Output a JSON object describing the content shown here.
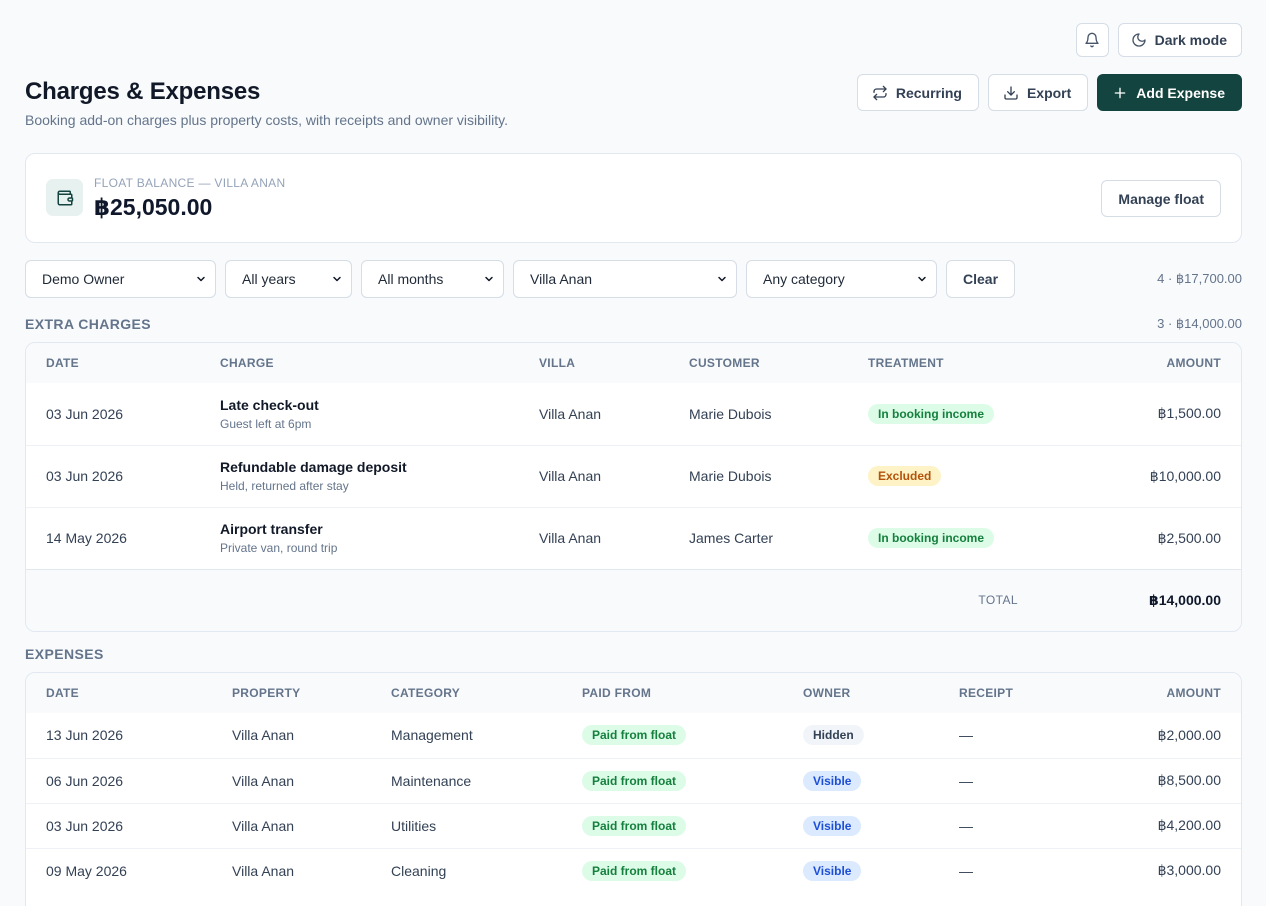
{
  "topbar": {
    "dark_mode_label": "Dark mode"
  },
  "header": {
    "title": "Charges & Expenses",
    "subtitle": "Booking add-on charges plus property costs, with receipts and owner visibility.",
    "recurring_label": "Recurring",
    "export_label": "Export",
    "add_expense_label": "Add Expense"
  },
  "float": {
    "label": "FLOAT BALANCE — VILLA ANAN",
    "value": "฿25,050.00",
    "manage_label": "Manage float"
  },
  "filters": {
    "owner": "Demo Owner",
    "year": "All years",
    "month": "All months",
    "villa": "Villa Anan",
    "category": "Any category",
    "clear_label": "Clear",
    "summary": "4 · ฿17,700.00"
  },
  "extra_charges": {
    "title": "EXTRA CHARGES",
    "meta": "3 · ฿14,000.00",
    "columns": [
      "DATE",
      "CHARGE",
      "VILLA",
      "CUSTOMER",
      "TREATMENT",
      "AMOUNT"
    ],
    "rows": [
      {
        "date": "03 Jun 2026",
        "charge": "Late check-out",
        "note": "Guest left at 6pm",
        "villa": "Villa Anan",
        "customer": "Marie Dubois",
        "treatment": "In booking income",
        "amount": "฿1,500.00"
      },
      {
        "date": "03 Jun 2026",
        "charge": "Refundable damage deposit",
        "note": "Held, returned after stay",
        "villa": "Villa Anan",
        "customer": "Marie Dubois",
        "treatment": "Excluded",
        "amount": "฿10,000.00"
      },
      {
        "date": "14 May 2026",
        "charge": "Airport transfer",
        "note": "Private van, round trip",
        "villa": "Villa Anan",
        "customer": "James Carter",
        "treatment": "In booking income",
        "amount": "฿2,500.00"
      }
    ],
    "total_label": "TOTAL",
    "total_value": "฿14,000.00"
  },
  "expenses": {
    "title": "EXPENSES",
    "columns": [
      "DATE",
      "PROPERTY",
      "CATEGORY",
      "PAID FROM",
      "OWNER",
      "RECEIPT",
      "AMOUNT"
    ],
    "rows": [
      {
        "date": "13 Jun 2026",
        "property": "Villa Anan",
        "category": "Management",
        "paid_from": "Paid from float",
        "owner": "Hidden",
        "receipt": "—",
        "amount": "฿2,000.00"
      },
      {
        "date": "06 Jun 2026",
        "property": "Villa Anan",
        "category": "Maintenance",
        "paid_from": "Paid from float",
        "owner": "Visible",
        "receipt": "—",
        "amount": "฿8,500.00"
      },
      {
        "date": "03 Jun 2026",
        "property": "Villa Anan",
        "category": "Utilities",
        "paid_from": "Paid from float",
        "owner": "Visible",
        "receipt": "—",
        "amount": "฿4,200.00"
      },
      {
        "date": "09 May 2026",
        "property": "Villa Anan",
        "category": "Cleaning",
        "paid_from": "Paid from float",
        "owner": "Visible",
        "receipt": "—",
        "amount": "฿3,000.00"
      }
    ]
  },
  "colors": {
    "primary": "#14443f",
    "badge_green": "#dcfce7",
    "badge_amber": "#fef3c7",
    "badge_blue": "#dbeafe"
  }
}
